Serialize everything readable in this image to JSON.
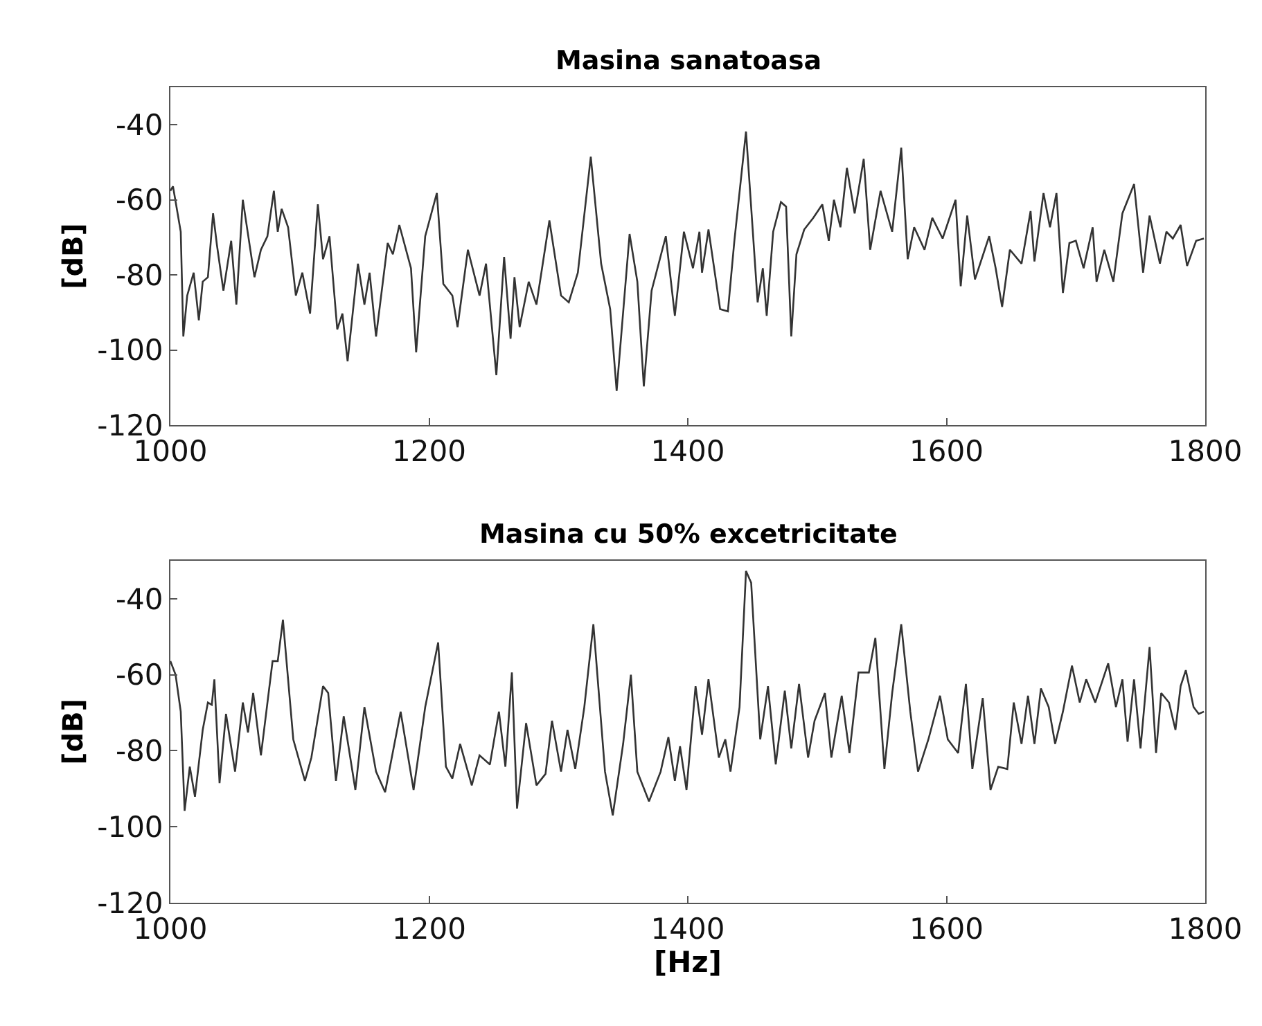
{
  "chart_data": [
    {
      "type": "line",
      "title": "Masina sanatoasa",
      "ylabel": "[dB]",
      "xlim": [
        1000,
        1800
      ],
      "xticks": [
        1000,
        1200,
        1400,
        1600,
        1800
      ],
      "ylim": [
        -120,
        -30
      ],
      "yticks": [
        -120,
        -100,
        -80,
        -60,
        -40
      ],
      "marker": "none",
      "line_style": "solid",
      "series": [
        {
          "color": "#333333",
          "x": [
            1000,
            1002,
            1008,
            1010,
            1013,
            1018,
            1022,
            1025,
            1029,
            1033,
            1036,
            1041,
            1047,
            1051,
            1056,
            1065,
            1070,
            1075,
            1080,
            1083,
            1086,
            1091,
            1097,
            1102,
            1108,
            1114,
            1118,
            1123,
            1129,
            1133,
            1137,
            1145,
            1150,
            1154,
            1159,
            1168,
            1172,
            1177,
            1186,
            1190,
            1197,
            1206,
            1211,
            1218,
            1222,
            1230,
            1239,
            1244,
            1252,
            1258,
            1263,
            1266,
            1270,
            1277,
            1283,
            1293,
            1302,
            1308,
            1315,
            1325,
            1333,
            1340,
            1345,
            1355,
            1361,
            1366,
            1372,
            1383,
            1390,
            1397,
            1404,
            1409,
            1411,
            1416,
            1425,
            1431,
            1436,
            1445,
            1454,
            1458,
            1461,
            1466,
            1472,
            1476,
            1480,
            1484,
            1490,
            1497,
            1504,
            1509,
            1513,
            1518,
            1523,
            1529,
            1536,
            1541,
            1549,
            1558,
            1565,
            1570,
            1575,
            1583,
            1589,
            1597,
            1607,
            1611,
            1616,
            1622,
            1633,
            1638,
            1643,
            1649,
            1658,
            1665,
            1668,
            1675,
            1680,
            1685,
            1690,
            1695,
            1700,
            1706,
            1713,
            1716,
            1722,
            1729,
            1736,
            1745,
            1752,
            1757,
            1765,
            1770,
            1775,
            1781,
            1786,
            1793,
            1799
          ],
          "values": [
            -57.6,
            -56.4,
            -68.5,
            -96.4,
            -85.5,
            -79.4,
            -92.1,
            -81.8,
            -80.6,
            -63.6,
            -72.1,
            -84.2,
            -70.9,
            -87.9,
            -60.0,
            -80.6,
            -73.3,
            -69.7,
            -57.6,
            -68.5,
            -62.4,
            -67.3,
            -85.5,
            -79.4,
            -90.3,
            -61.2,
            -75.8,
            -69.7,
            -94.5,
            -90.3,
            -103.0,
            -77.0,
            -87.9,
            -79.4,
            -96.4,
            -71.5,
            -74.5,
            -66.7,
            -78.2,
            -100.6,
            -69.7,
            -58.2,
            -82.4,
            -85.5,
            -93.9,
            -73.3,
            -85.5,
            -77.0,
            -106.7,
            -75.2,
            -97.0,
            -80.6,
            -93.9,
            -81.8,
            -87.9,
            -65.5,
            -85.5,
            -87.3,
            -79.4,
            -48.5,
            -77.0,
            -89.1,
            -110.9,
            -69.1,
            -81.8,
            -109.7,
            -84.2,
            -69.7,
            -90.9,
            -68.5,
            -78.2,
            -68.5,
            -79.4,
            -67.9,
            -89.1,
            -89.7,
            -70.9,
            -41.8,
            -87.3,
            -78.2,
            -90.9,
            -68.5,
            -60.6,
            -61.8,
            -96.4,
            -74.5,
            -67.9,
            -64.8,
            -61.2,
            -70.9,
            -60.0,
            -67.3,
            -51.5,
            -63.6,
            -49.1,
            -73.3,
            -57.6,
            -68.5,
            -46.1,
            -75.8,
            -67.3,
            -73.3,
            -64.8,
            -70.3,
            -60.0,
            -83.0,
            -64.2,
            -81.2,
            -69.7,
            -78.2,
            -88.5,
            -73.3,
            -77.0,
            -63.0,
            -76.4,
            -58.2,
            -67.3,
            -58.2,
            -84.8,
            -71.5,
            -70.9,
            -78.2,
            -67.3,
            -81.8,
            -73.3,
            -81.8,
            -63.6,
            -55.8,
            -79.4,
            -64.2,
            -77.0,
            -68.5,
            -70.3,
            -66.7,
            -77.6,
            -70.9,
            -70.3
          ]
        }
      ]
    },
    {
      "type": "line",
      "title": "Masina cu 50% excetricitate",
      "xlabel": "[Hz]",
      "ylabel": "[dB]",
      "xlim": [
        1000,
        1800
      ],
      "xticks": [
        1000,
        1200,
        1400,
        1600,
        1800
      ],
      "ylim": [
        -120,
        -30
      ],
      "yticks": [
        -120,
        -100,
        -80,
        -60,
        -40
      ],
      "marker": "none",
      "line_style": "solid",
      "series": [
        {
          "color": "#333333",
          "x": [
            1000,
            1004,
            1008,
            1011,
            1015,
            1019,
            1025,
            1029,
            1032,
            1034,
            1038,
            1043,
            1050,
            1056,
            1060,
            1064,
            1070,
            1079,
            1083,
            1087,
            1095,
            1104,
            1109,
            1118,
            1122,
            1128,
            1134,
            1143,
            1150,
            1159,
            1166,
            1178,
            1188,
            1197,
            1207,
            1213,
            1218,
            1224,
            1233,
            1239,
            1247,
            1254,
            1259,
            1264,
            1268,
            1275,
            1283,
            1290,
            1295,
            1302,
            1307,
            1313,
            1320,
            1327,
            1336,
            1342,
            1350,
            1356,
            1361,
            1370,
            1379,
            1385,
            1390,
            1394,
            1399,
            1406,
            1411,
            1416,
            1424,
            1429,
            1433,
            1440,
            1445,
            1449,
            1456,
            1462,
            1468,
            1475,
            1480,
            1486,
            1493,
            1498,
            1506,
            1511,
            1519,
            1525,
            1532,
            1540,
            1545,
            1552,
            1558,
            1565,
            1572,
            1578,
            1586,
            1595,
            1601,
            1609,
            1615,
            1620,
            1628,
            1634,
            1640,
            1647,
            1652,
            1658,
            1663,
            1668,
            1673,
            1679,
            1684,
            1690,
            1697,
            1703,
            1708,
            1715,
            1725,
            1731,
            1736,
            1740,
            1745,
            1750,
            1757,
            1762,
            1766,
            1772,
            1777,
            1781,
            1785,
            1791,
            1795,
            1799
          ],
          "values": [
            -56.4,
            -60.0,
            -69.7,
            -95.8,
            -84.2,
            -92.1,
            -74.5,
            -67.3,
            -67.9,
            -61.2,
            -88.5,
            -70.3,
            -85.5,
            -67.3,
            -75.2,
            -64.8,
            -81.2,
            -56.4,
            -56.4,
            -45.5,
            -77.0,
            -87.9,
            -81.8,
            -63.0,
            -64.8,
            -87.9,
            -70.9,
            -90.3,
            -68.5,
            -85.5,
            -90.9,
            -69.7,
            -90.3,
            -68.5,
            -51.5,
            -84.2,
            -87.3,
            -78.2,
            -89.1,
            -81.2,
            -83.6,
            -69.7,
            -84.2,
            -59.4,
            -95.2,
            -72.7,
            -89.1,
            -86.1,
            -72.1,
            -85.5,
            -74.5,
            -84.8,
            -68.5,
            -46.7,
            -85.5,
            -97.0,
            -78.2,
            -60.0,
            -85.5,
            -93.3,
            -85.5,
            -76.4,
            -87.9,
            -78.8,
            -90.3,
            -63.0,
            -75.8,
            -61.2,
            -81.8,
            -77.0,
            -85.5,
            -68.5,
            -32.7,
            -35.8,
            -77.0,
            -63.0,
            -83.6,
            -64.2,
            -79.4,
            -62.4,
            -81.8,
            -72.1,
            -64.8,
            -81.8,
            -65.5,
            -80.6,
            -59.4,
            -59.4,
            -50.3,
            -84.8,
            -64.8,
            -46.7,
            -69.7,
            -85.5,
            -77.0,
            -65.5,
            -77.0,
            -80.6,
            -62.4,
            -84.8,
            -66.1,
            -90.3,
            -84.2,
            -84.8,
            -67.3,
            -78.2,
            -65.5,
            -78.2,
            -63.6,
            -68.5,
            -78.2,
            -69.7,
            -57.6,
            -67.3,
            -61.2,
            -67.3,
            -57.0,
            -68.5,
            -61.2,
            -77.6,
            -61.2,
            -79.4,
            -52.7,
            -80.6,
            -64.8,
            -67.3,
            -74.5,
            -63.0,
            -58.8,
            -68.5,
            -70.3,
            -69.7
          ]
        }
      ]
    }
  ]
}
